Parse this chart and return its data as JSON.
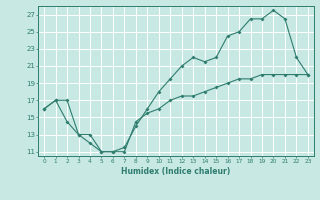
{
  "line1_x": [
    0,
    1,
    2,
    3,
    4,
    5,
    6,
    7,
    8,
    9,
    10,
    11,
    12,
    13,
    14,
    15,
    16,
    17,
    18,
    19,
    20,
    21,
    22,
    23
  ],
  "line1_y": [
    16,
    17,
    17,
    13,
    13,
    11,
    11,
    11.5,
    14,
    16,
    18,
    19.5,
    21,
    22,
    21.5,
    22,
    24.5,
    25,
    26.5,
    26.5,
    27.5,
    26.5,
    22,
    20
  ],
  "line2_x": [
    0,
    1,
    2,
    3,
    4,
    5,
    6,
    7,
    8,
    9,
    10,
    11,
    12,
    13,
    14,
    15,
    16,
    17,
    18,
    19,
    20,
    21,
    22,
    23
  ],
  "line2_y": [
    16,
    17,
    14.5,
    13,
    12,
    11,
    11,
    11,
    14.5,
    15.5,
    16,
    17,
    17.5,
    17.5,
    18,
    18.5,
    19,
    19.5,
    19.5,
    20,
    20,
    20,
    20,
    20
  ],
  "line_color": "#2E7D6E",
  "bg_color": "#C8E8E4",
  "grid_color": "#FFFFFF",
  "axis_color": "#2E7D6E",
  "xlabel": "Humidex (Indice chaleur)",
  "yticks": [
    11,
    13,
    15,
    17,
    19,
    21,
    23,
    25,
    27
  ],
  "xticks": [
    0,
    1,
    2,
    3,
    4,
    5,
    6,
    7,
    8,
    9,
    10,
    11,
    12,
    13,
    14,
    15,
    16,
    17,
    18,
    19,
    20,
    21,
    22,
    23
  ],
  "ylim": [
    10.5,
    28
  ],
  "xlim": [
    -0.5,
    23.5
  ]
}
